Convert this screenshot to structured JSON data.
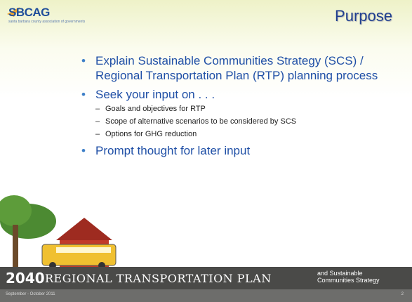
{
  "header": {
    "logo": "SBCAG",
    "logo_subtitle": "santa barbara county association of governments",
    "title": "Purpose"
  },
  "bullets": [
    {
      "text": "Explain Sustainable Communities Strategy (SCS) / Regional Transportation Plan (RTP) planning process"
    },
    {
      "text": "Seek your input on . . .",
      "subitems": [
        "Goals and objectives for RTP",
        "Scope of alternative scenarios to be considered by SCS",
        "Options for GHG reduction"
      ]
    },
    {
      "text": "Prompt thought for later input"
    }
  ],
  "banner": {
    "year": "2040",
    "title": "REGIONAL TRANSPORTATION PLAN",
    "subtitle_line1": "and Sustainable",
    "subtitle_line2": "Communities Strategy"
  },
  "footer": {
    "date": "September - October 2011",
    "page": "2"
  }
}
